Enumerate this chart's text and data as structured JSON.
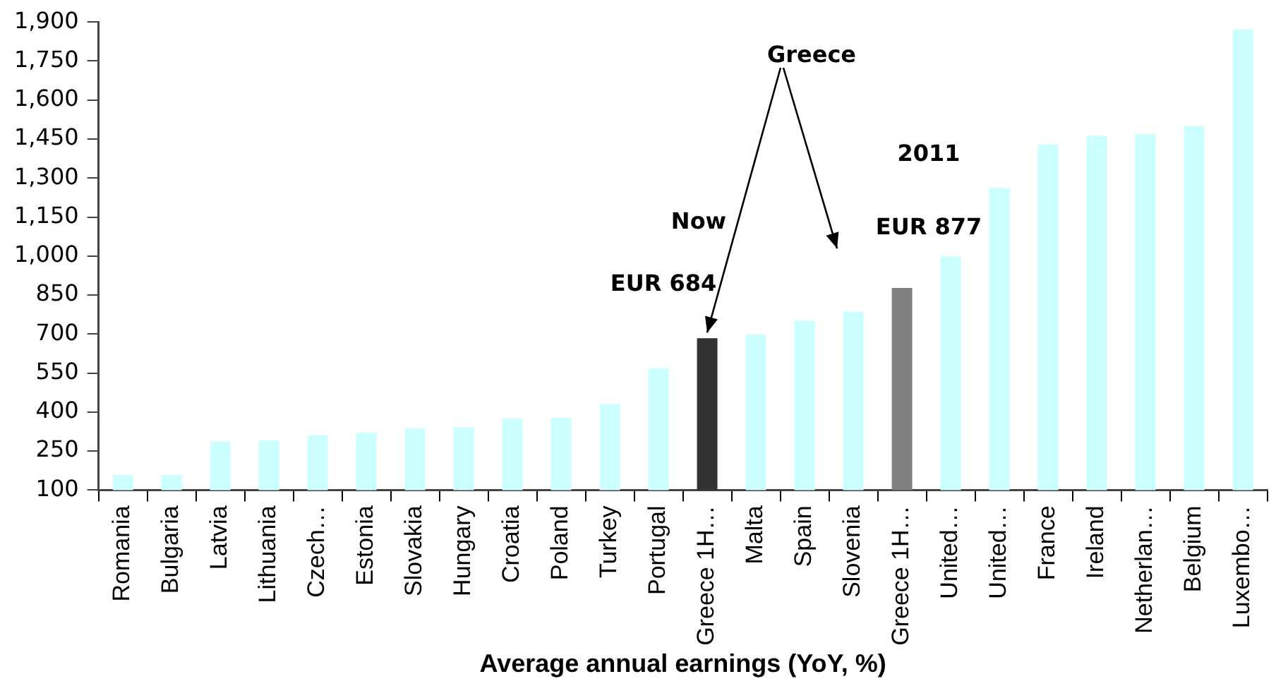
{
  "chart_data": {
    "type": "bar",
    "xlabel": "Average annual earnings (YoY, %)",
    "categories": [
      "Romania",
      "Bulgaria",
      "Latvia",
      "Lithuania",
      "Czech…",
      "Estonia",
      "Slovakia",
      "Hungary",
      "Croatia",
      "Poland",
      "Turkey",
      "Portugal",
      "Greece 1H…",
      "Malta",
      "Spain",
      "Slovenia",
      "Greece 1H…",
      "United…",
      "United…",
      "France",
      "Ireland",
      "Netherlan…",
      "Belgium",
      "Luxembo…"
    ],
    "values": [
      158,
      158,
      287,
      291,
      311,
      321,
      337,
      341,
      375,
      377,
      431,
      568,
      684,
      698,
      752,
      786,
      877,
      999,
      1262,
      1429,
      1462,
      1468,
      1500,
      1872
    ],
    "colors": [
      "#ccffff",
      "#ccffff",
      "#ccffff",
      "#ccffff",
      "#ccffff",
      "#ccffff",
      "#ccffff",
      "#ccffff",
      "#ccffff",
      "#ccffff",
      "#ccffff",
      "#ccffff",
      "#333333",
      "#ccffff",
      "#ccffff",
      "#ccffff",
      "#808080",
      "#ccffff",
      "#ccffff",
      "#ccffff",
      "#ccffff",
      "#ccffff",
      "#ccffff",
      "#ccffff"
    ],
    "ylim": [
      100,
      1900
    ],
    "yticks": [
      100,
      250,
      400,
      550,
      700,
      850,
      {
        "value": 1000,
        "label": "1,000"
      },
      {
        "value": 1150,
        "label": "1,150"
      },
      {
        "value": 1300,
        "label": "1,300"
      },
      {
        "value": 1450,
        "label": "1,450"
      },
      {
        "value": 1600,
        "label": "1,600"
      },
      {
        "value": 1750,
        "label": "1,750"
      },
      {
        "value": 1900,
        "label": "1,900"
      }
    ],
    "grid": false,
    "legend": false,
    "annotations": [
      {
        "text": "Greece",
        "x": "Greece 1H…",
        "y": 684
      },
      "Now",
      "EUR 684",
      "2011",
      "EUR 877"
    ]
  }
}
